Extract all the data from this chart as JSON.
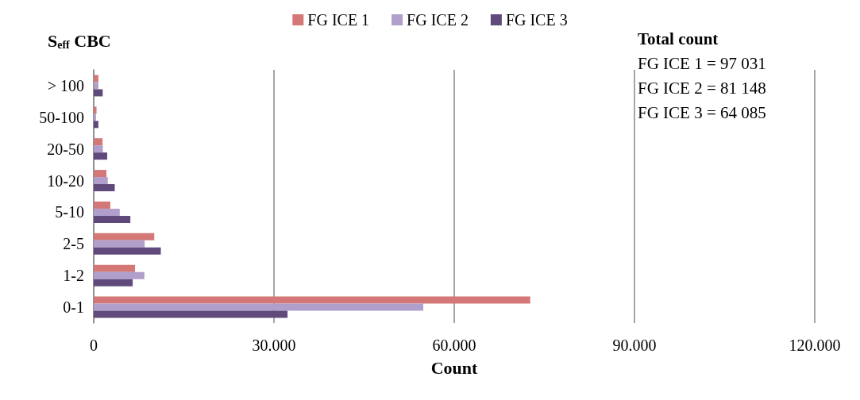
{
  "chart_data": {
    "type": "bar",
    "orientation": "horizontal",
    "xlabel": "Count",
    "ylabel": "S$_{eff}$ CBC",
    "categories": [
      "> 100",
      "50-100",
      "20-50",
      "10-20",
      "5-10",
      "2-5",
      "1-2",
      "0-1"
    ],
    "series": [
      {
        "name": "FG ICE 1",
        "color": "#d37876",
        "values": [
          780,
          470,
          1470,
          2120,
          2770,
          10080,
          6880,
          72650
        ]
      },
      {
        "name": "FG ICE 2",
        "color": "#b09fca",
        "values": [
          780,
          390,
          1520,
          2340,
          4330,
          8480,
          8440,
          54850
        ]
      },
      {
        "name": "FG ICE 3",
        "color": "#604a7b",
        "values": [
          1500,
          780,
          2250,
          3500,
          6100,
          11170,
          6490,
          32260
        ]
      }
    ],
    "xlim": [
      0,
      120000
    ],
    "xticks": [
      0,
      {
        "value": 30000,
        "label": "30.000"
      },
      {
        "value": 60000,
        "label": "60.000"
      },
      {
        "value": 90000,
        "label": "90.000"
      },
      {
        "value": 120000,
        "label": "120.000"
      }
    ],
    "grid": "x",
    "legend": "top",
    "annotations": [
      "Total count",
      "FG ICE 1 = 97 031",
      "FG ICE 2 = 81 148",
      "FG ICE 3 = 64 085"
    ]
  }
}
